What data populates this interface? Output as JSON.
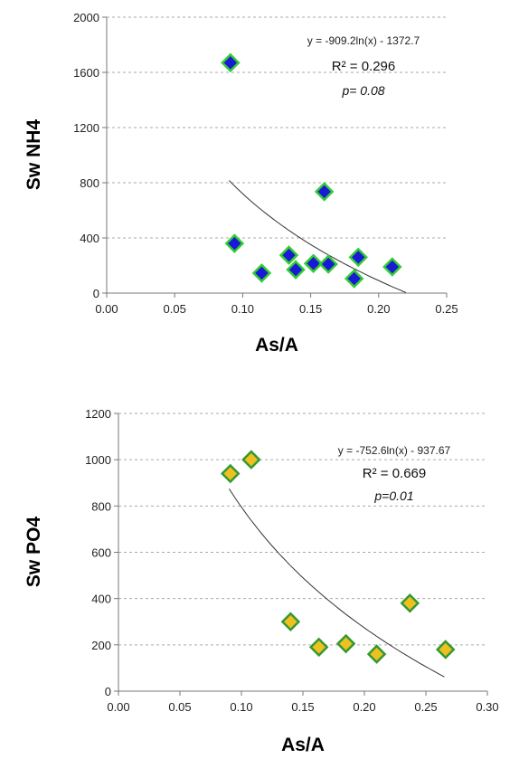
{
  "chart_data": [
    {
      "type": "scatter",
      "xlabel": "As/A",
      "ylabel": "Sw NH4",
      "xlim": [
        0,
        0.25
      ],
      "ylim": [
        0,
        2000
      ],
      "xticks": [
        "0.00",
        "0.05",
        "0.10",
        "0.15",
        "0.20",
        "0.25"
      ],
      "yticks": [
        "0",
        "400",
        "800",
        "1200",
        "1600",
        "2000"
      ],
      "grid": "horizontal dashed",
      "marker_fill": "#1a1ad6",
      "marker_edge": "#33cc33",
      "points": [
        {
          "x": 0.091,
          "y": 1670
        },
        {
          "x": 0.094,
          "y": 360
        },
        {
          "x": 0.114,
          "y": 145
        },
        {
          "x": 0.134,
          "y": 275
        },
        {
          "x": 0.139,
          "y": 170
        },
        {
          "x": 0.152,
          "y": 215
        },
        {
          "x": 0.16,
          "y": 735
        },
        {
          "x": 0.163,
          "y": 210
        },
        {
          "x": 0.182,
          "y": 105
        },
        {
          "x": 0.185,
          "y": 260
        },
        {
          "x": 0.21,
          "y": 190
        }
      ],
      "trend": {
        "a": -909.2,
        "b": -1372.7,
        "x_from": 0.09,
        "x_to": 0.22
      },
      "equation": "y = -909.2ln(x) - 1372.7",
      "r2": "R² = 0.296",
      "p": "p= 0.08"
    },
    {
      "type": "scatter",
      "xlabel": "As/A",
      "ylabel": "Sw PO4",
      "xlim": [
        0,
        0.3
      ],
      "ylim": [
        0,
        1200
      ],
      "xticks": [
        "0.00",
        "0.05",
        "0.10",
        "0.15",
        "0.20",
        "0.25",
        "0.30"
      ],
      "yticks": [
        "0",
        "200",
        "400",
        "600",
        "800",
        "1000",
        "1200"
      ],
      "grid": "horizontal dashed",
      "marker_fill": "#f0c020",
      "marker_edge": "#339933",
      "points": [
        {
          "x": 0.091,
          "y": 940
        },
        {
          "x": 0.108,
          "y": 1000
        },
        {
          "x": 0.14,
          "y": 300
        },
        {
          "x": 0.163,
          "y": 190
        },
        {
          "x": 0.185,
          "y": 205
        },
        {
          "x": 0.21,
          "y": 160
        },
        {
          "x": 0.237,
          "y": 380
        },
        {
          "x": 0.266,
          "y": 180
        }
      ],
      "trend": {
        "a": -752.6,
        "b": -937.67,
        "x_from": 0.09,
        "x_to": 0.265
      },
      "equation": "y = -752.6ln(x) - 937.67",
      "r2": "R² = 0.669",
      "p": "p=0.01"
    }
  ]
}
